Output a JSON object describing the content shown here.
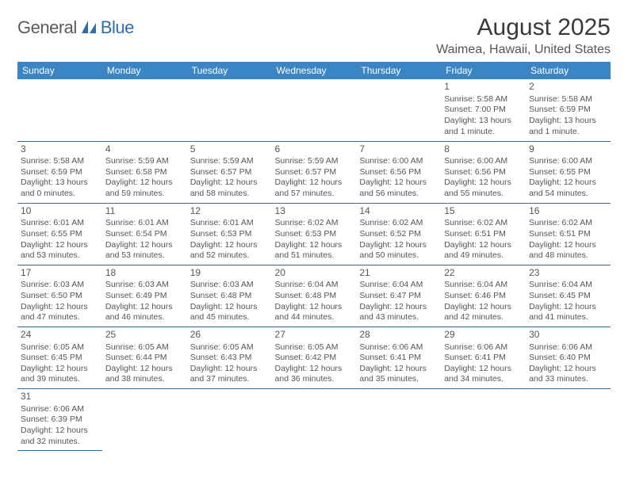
{
  "logo": {
    "text1": "General",
    "text2": "Blue"
  },
  "title": "August 2025",
  "location": "Waimea, Hawaii, United States",
  "colors": {
    "header_bg": "#3b85c4",
    "header_fg": "#ffffff",
    "border": "#2f6fa8",
    "text": "#444444",
    "title": "#3a3a3a",
    "logo_gray": "#5a5a5a",
    "logo_blue": "#2f6fa8"
  },
  "day_headers": [
    "Sunday",
    "Monday",
    "Tuesday",
    "Wednesday",
    "Thursday",
    "Friday",
    "Saturday"
  ],
  "weeks": [
    [
      null,
      null,
      null,
      null,
      null,
      {
        "n": "1",
        "sr": "5:58 AM",
        "ss": "7:00 PM",
        "dl": "13 hours and 1 minute."
      },
      {
        "n": "2",
        "sr": "5:58 AM",
        "ss": "6:59 PM",
        "dl": "13 hours and 1 minute."
      }
    ],
    [
      {
        "n": "3",
        "sr": "5:58 AM",
        "ss": "6:59 PM",
        "dl": "13 hours and 0 minutes."
      },
      {
        "n": "4",
        "sr": "5:59 AM",
        "ss": "6:58 PM",
        "dl": "12 hours and 59 minutes."
      },
      {
        "n": "5",
        "sr": "5:59 AM",
        "ss": "6:57 PM",
        "dl": "12 hours and 58 minutes."
      },
      {
        "n": "6",
        "sr": "5:59 AM",
        "ss": "6:57 PM",
        "dl": "12 hours and 57 minutes."
      },
      {
        "n": "7",
        "sr": "6:00 AM",
        "ss": "6:56 PM",
        "dl": "12 hours and 56 minutes."
      },
      {
        "n": "8",
        "sr": "6:00 AM",
        "ss": "6:56 PM",
        "dl": "12 hours and 55 minutes."
      },
      {
        "n": "9",
        "sr": "6:00 AM",
        "ss": "6:55 PM",
        "dl": "12 hours and 54 minutes."
      }
    ],
    [
      {
        "n": "10",
        "sr": "6:01 AM",
        "ss": "6:55 PM",
        "dl": "12 hours and 53 minutes."
      },
      {
        "n": "11",
        "sr": "6:01 AM",
        "ss": "6:54 PM",
        "dl": "12 hours and 53 minutes."
      },
      {
        "n": "12",
        "sr": "6:01 AM",
        "ss": "6:53 PM",
        "dl": "12 hours and 52 minutes."
      },
      {
        "n": "13",
        "sr": "6:02 AM",
        "ss": "6:53 PM",
        "dl": "12 hours and 51 minutes."
      },
      {
        "n": "14",
        "sr": "6:02 AM",
        "ss": "6:52 PM",
        "dl": "12 hours and 50 minutes."
      },
      {
        "n": "15",
        "sr": "6:02 AM",
        "ss": "6:51 PM",
        "dl": "12 hours and 49 minutes."
      },
      {
        "n": "16",
        "sr": "6:02 AM",
        "ss": "6:51 PM",
        "dl": "12 hours and 48 minutes."
      }
    ],
    [
      {
        "n": "17",
        "sr": "6:03 AM",
        "ss": "6:50 PM",
        "dl": "12 hours and 47 minutes."
      },
      {
        "n": "18",
        "sr": "6:03 AM",
        "ss": "6:49 PM",
        "dl": "12 hours and 46 minutes."
      },
      {
        "n": "19",
        "sr": "6:03 AM",
        "ss": "6:48 PM",
        "dl": "12 hours and 45 minutes."
      },
      {
        "n": "20",
        "sr": "6:04 AM",
        "ss": "6:48 PM",
        "dl": "12 hours and 44 minutes."
      },
      {
        "n": "21",
        "sr": "6:04 AM",
        "ss": "6:47 PM",
        "dl": "12 hours and 43 minutes."
      },
      {
        "n": "22",
        "sr": "6:04 AM",
        "ss": "6:46 PM",
        "dl": "12 hours and 42 minutes."
      },
      {
        "n": "23",
        "sr": "6:04 AM",
        "ss": "6:45 PM",
        "dl": "12 hours and 41 minutes."
      }
    ],
    [
      {
        "n": "24",
        "sr": "6:05 AM",
        "ss": "6:45 PM",
        "dl": "12 hours and 39 minutes."
      },
      {
        "n": "25",
        "sr": "6:05 AM",
        "ss": "6:44 PM",
        "dl": "12 hours and 38 minutes."
      },
      {
        "n": "26",
        "sr": "6:05 AM",
        "ss": "6:43 PM",
        "dl": "12 hours and 37 minutes."
      },
      {
        "n": "27",
        "sr": "6:05 AM",
        "ss": "6:42 PM",
        "dl": "12 hours and 36 minutes."
      },
      {
        "n": "28",
        "sr": "6:06 AM",
        "ss": "6:41 PM",
        "dl": "12 hours and 35 minutes."
      },
      {
        "n": "29",
        "sr": "6:06 AM",
        "ss": "6:41 PM",
        "dl": "12 hours and 34 minutes."
      },
      {
        "n": "30",
        "sr": "6:06 AM",
        "ss": "6:40 PM",
        "dl": "12 hours and 33 minutes."
      }
    ],
    [
      {
        "n": "31",
        "sr": "6:06 AM",
        "ss": "6:39 PM",
        "dl": "12 hours and 32 minutes."
      },
      null,
      null,
      null,
      null,
      null,
      null
    ]
  ],
  "labels": {
    "sunrise": "Sunrise: ",
    "sunset": "Sunset: ",
    "daylight": "Daylight: "
  }
}
